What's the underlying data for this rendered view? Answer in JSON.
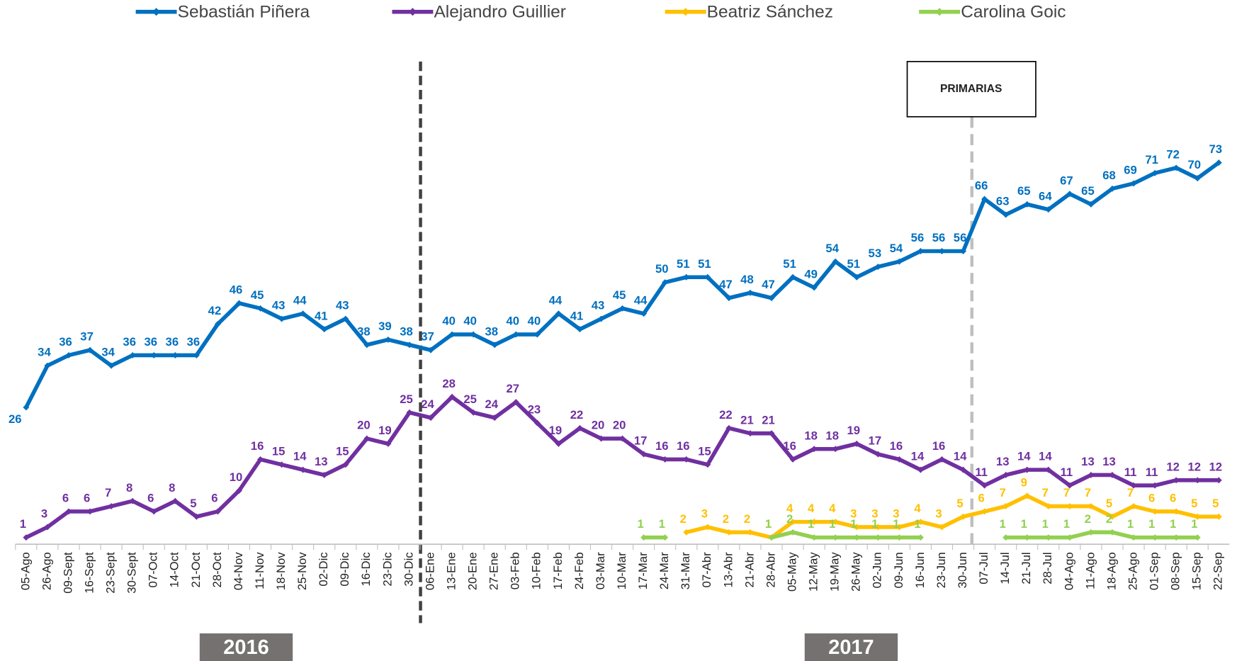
{
  "chart_data": {
    "type": "line",
    "categories": [
      "05-Ago",
      "26-Ago",
      "09-Sept",
      "16-Sept",
      "23-Sept",
      "30-Sept",
      "07-Oct",
      "14-Oct",
      "21-Oct",
      "28-Oct",
      "04-Nov",
      "11-Nov",
      "18-Nov",
      "25-Nov",
      "02-Dic",
      "09-Dic",
      "16-Dic",
      "23-Dic",
      "30-Dic",
      "06-Ene",
      "13-Ene",
      "20-Ene",
      "27-Ene",
      "03-Feb",
      "10-Feb",
      "17-Feb",
      "24-Feb",
      "03-Mar",
      "10-Mar",
      "17-Mar",
      "24-Mar",
      "31-Mar",
      "07-Abr",
      "13-Abr",
      "21-Abr",
      "28-Abr",
      "05-May",
      "12-May",
      "19-May",
      "26-May",
      "02-Jun",
      "09-Jun",
      "16-Jun",
      "23-Jun",
      "30-Jun",
      "07-Jul",
      "14-Jul",
      "21-Jul",
      "28-Jul",
      "04-Ago",
      "11-Ago",
      "18-Ago",
      "25-Ago",
      "01-Sep",
      "08-Sep",
      "15-Sep",
      "22-Sep"
    ],
    "series": [
      {
        "name": "Sebastián Piñera",
        "color": "#0070c0",
        "values": [
          26,
          34,
          36,
          37,
          34,
          36,
          36,
          36,
          36,
          42,
          46,
          45,
          43,
          44,
          41,
          43,
          38,
          39,
          38,
          37,
          40,
          40,
          38,
          40,
          40,
          44,
          41,
          43,
          45,
          44,
          50,
          51,
          51,
          47,
          48,
          47,
          51,
          49,
          54,
          51,
          53,
          54,
          56,
          56,
          56,
          66,
          63,
          65,
          64,
          67,
          65,
          68,
          69,
          71,
          72,
          70,
          73
        ]
      },
      {
        "name": "Alejandro Guillier",
        "color": "#7030a0",
        "values": [
          1,
          3,
          6,
          6,
          7,
          8,
          6,
          8,
          5,
          6,
          10,
          16,
          15,
          14,
          13,
          15,
          20,
          19,
          25,
          24,
          28,
          25,
          24,
          27,
          23,
          19,
          22,
          20,
          20,
          17,
          16,
          16,
          15,
          22,
          21,
          21,
          16,
          18,
          18,
          19,
          17,
          16,
          14,
          16,
          14,
          11,
          13,
          14,
          14,
          11,
          13,
          13,
          11,
          11,
          12,
          12,
          12
        ]
      },
      {
        "name": "Beatriz Sánchez",
        "color": "#ffc000",
        "values": [
          null,
          null,
          null,
          null,
          null,
          null,
          null,
          null,
          null,
          null,
          null,
          null,
          null,
          null,
          null,
          null,
          null,
          null,
          null,
          null,
          null,
          null,
          null,
          null,
          null,
          null,
          null,
          null,
          null,
          null,
          null,
          2,
          3,
          2,
          2,
          1,
          4,
          4,
          4,
          3,
          3,
          3,
          4,
          3,
          5,
          6,
          7,
          9,
          7,
          7,
          7,
          5,
          7,
          6,
          6,
          5,
          5
        ]
      },
      {
        "name": "Carolina Goic",
        "color": "#92d050",
        "values": [
          null,
          null,
          null,
          null,
          null,
          null,
          null,
          null,
          null,
          null,
          null,
          null,
          null,
          null,
          null,
          null,
          null,
          null,
          null,
          null,
          null,
          null,
          null,
          null,
          null,
          null,
          null,
          null,
          null,
          1,
          1,
          null,
          null,
          null,
          null,
          1,
          2,
          1,
          1,
          1,
          1,
          1,
          1,
          null,
          null,
          null,
          1,
          1,
          1,
          1,
          2,
          2,
          1,
          1,
          1,
          1,
          null
        ]
      }
    ],
    "ylim": [
      0,
      80
    ],
    "annotation": "PRIMARIAS",
    "periods": [
      "2016",
      "2017"
    ]
  }
}
